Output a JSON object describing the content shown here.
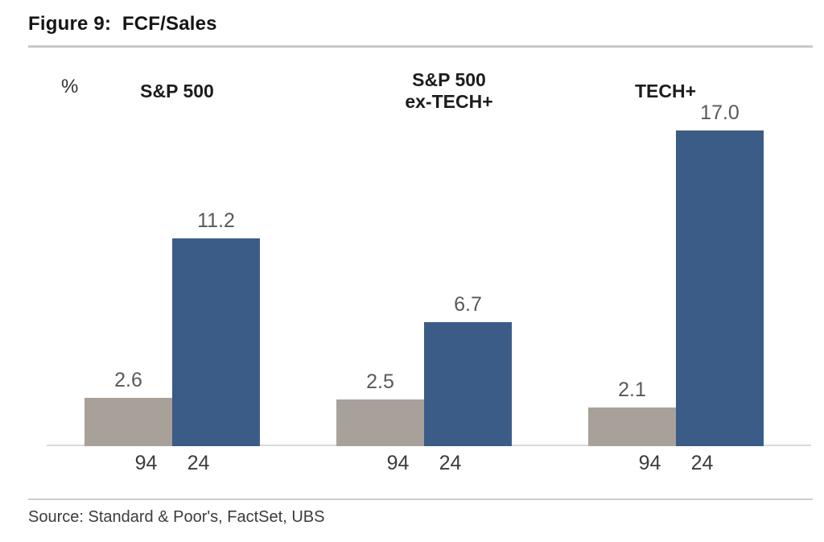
{
  "page": {
    "title": "Figure 9:  FCF/Sales",
    "source": "Source: Standard & Poor's, FactSet, UBS"
  },
  "chart": {
    "unit_label": "%"
  },
  "chart_data": {
    "type": "bar",
    "title": "FCF/Sales",
    "figure_label": "Figure 9",
    "ylabel": "%",
    "xlabel": "",
    "ylim": [
      0,
      18
    ],
    "grid": false,
    "legend_position": "none",
    "categories": [
      "94",
      "24"
    ],
    "groups": [
      {
        "header": "S&P 500",
        "values": [
          2.6,
          11.2
        ],
        "value_labels": [
          "2.6",
          "11.2"
        ]
      },
      {
        "header": "S&P 500\nex-TECH+",
        "values": [
          2.5,
          6.7
        ],
        "value_labels": [
          "2.5",
          "6.7"
        ]
      },
      {
        "header": "TECH+",
        "values": [
          2.1,
          17.0
        ],
        "value_labels": [
          "2.1",
          "17.0"
        ]
      }
    ],
    "series": [
      {
        "name": "94",
        "color": "#a8a19a",
        "values": [
          2.6,
          2.5,
          2.1
        ]
      },
      {
        "name": "24",
        "color": "#3c5c88",
        "values": [
          11.2,
          6.7,
          17.0
        ]
      }
    ],
    "source": "Standard & Poor's, FactSet, UBS"
  },
  "colors": {
    "bar_1994": "#a8a19a",
    "bar_2024": "#3c5c88",
    "axis_line": "#dadada",
    "value_label_text": "#595959",
    "tick_label_text": "#3d3d3d"
  }
}
